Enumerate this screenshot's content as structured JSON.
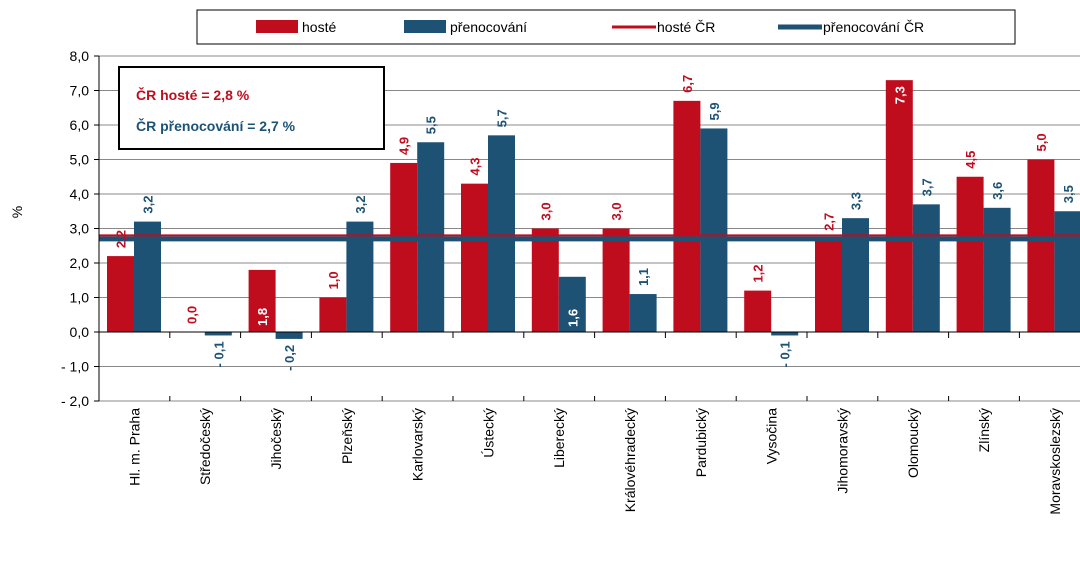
{
  "chart_data": {
    "type": "bar",
    "ylabel": "%",
    "ylim": [
      -2.0,
      8.0
    ],
    "yticks": [
      "- 2,0",
      "- 1,0",
      "0,0",
      "1,0",
      "2,0",
      "3,0",
      "4,0",
      "5,0",
      "6,0",
      "7,0",
      "8,0"
    ],
    "categories": [
      "Hl. m. Praha",
      "Středočeský",
      "Jihočeský",
      "Plzeňský",
      "Karlovarský",
      "Ústecký",
      "Liberecký",
      "Královéhradecký",
      "Pardubický",
      "Vysočina",
      "Jihomoravský",
      "Olomoucký",
      "Zlínský",
      "Moravskoslezský"
    ],
    "series": [
      {
        "name": "hosté",
        "color": "#c00d1e",
        "values": [
          2.2,
          0.0,
          1.8,
          1.0,
          4.9,
          4.3,
          3.0,
          3.0,
          6.7,
          1.2,
          2.7,
          7.3,
          4.5,
          5.0
        ],
        "labels": [
          "2,2",
          "0,0",
          "1,8",
          "1,0",
          "4,9",
          "4,3",
          "3,0",
          "3,0",
          "6,7",
          "1,2",
          "2,7",
          "7,3",
          "4,5",
          "5,0"
        ]
      },
      {
        "name": "přenocování",
        "color": "#1d5275",
        "values": [
          3.2,
          -0.1,
          -0.2,
          3.2,
          5.5,
          5.7,
          1.6,
          1.1,
          5.9,
          -0.1,
          3.3,
          3.7,
          3.6,
          3.5
        ],
        "labels": [
          "3,2",
          "- 0,1",
          "- 0,2",
          "3,2",
          "5,5",
          "5,7",
          "1,6",
          "1,1",
          "5,9",
          "- 0,1",
          "3,3",
          "3,7",
          "3,6",
          "3,5"
        ]
      }
    ],
    "reference_lines": [
      {
        "name": "hosté ČR",
        "value": 2.8,
        "color": "#c00d1e"
      },
      {
        "name": "přenocování ČR",
        "value": 2.7,
        "color": "#1d5275"
      }
    ],
    "legend": {
      "position": "top",
      "items": [
        "hosté",
        "přenocování",
        "hosté ČR",
        "přenocování ČR"
      ]
    },
    "info_box": {
      "line1": "ČR hosté = 2,8 %",
      "line2": "ČR přenocování = 2,7 %"
    },
    "grid": true
  }
}
